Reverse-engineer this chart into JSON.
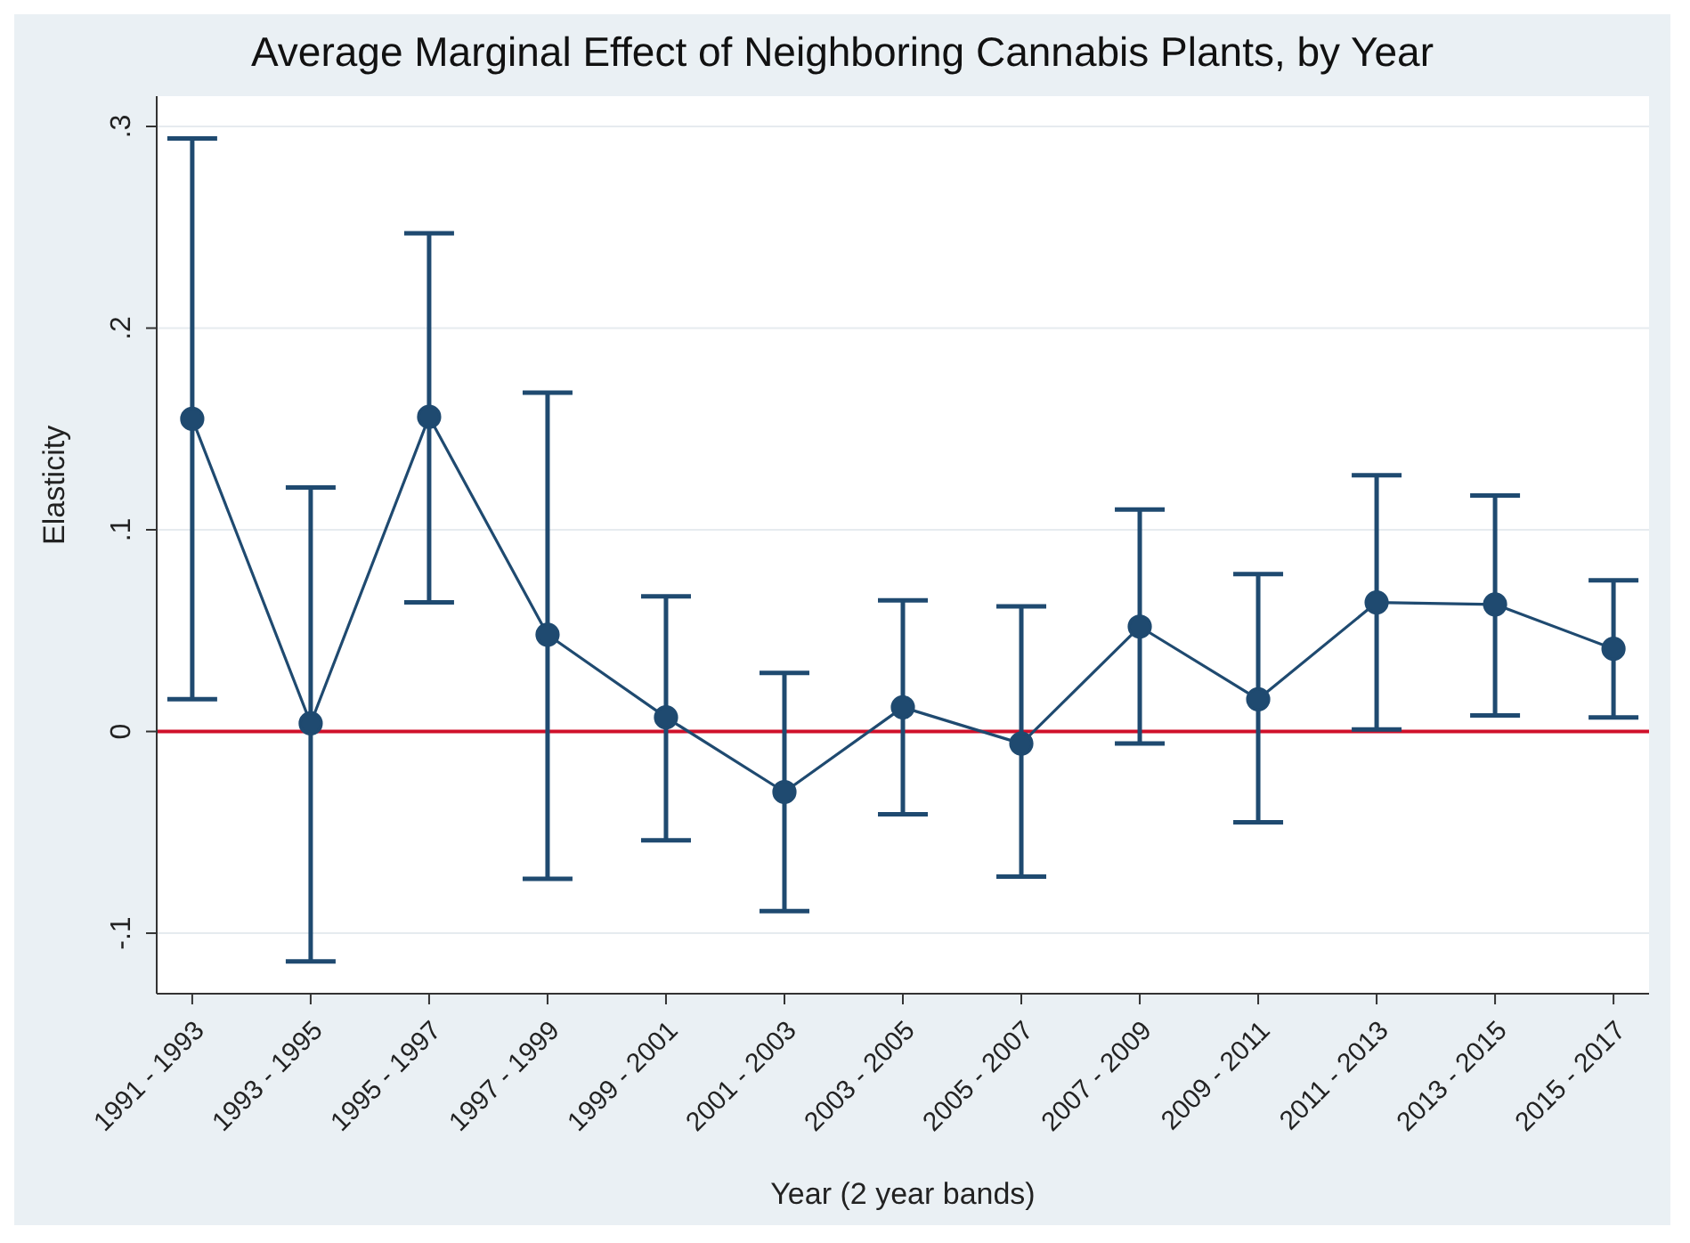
{
  "chart_data": {
    "type": "line",
    "title": "Average Marginal Effect of Neighboring Cannabis Plants, by Year",
    "xlabel": "Year (2 year bands)",
    "ylabel": "Elasticity",
    "categories": [
      "1991 - 1993",
      "1993 - 1995",
      "1995 - 1997",
      "1997 - 1999",
      "1999 - 2001",
      "2001 - 2003",
      "2003 - 2005",
      "2005 - 2007",
      "2007 - 2009",
      "2009 - 2011",
      "2011 - 2013",
      "2013 - 2015",
      "2015 - 2017"
    ],
    "series": [
      {
        "color": "#1f4a70",
        "values": [
          0.155,
          0.004,
          0.156,
          0.048,
          0.007,
          -0.03,
          0.012,
          -0.006,
          0.052,
          0.016,
          0.064,
          0.063,
          0.041
        ],
        "errors": [
          [
            0.016,
            0.294
          ],
          [
            -0.114,
            0.121
          ],
          [
            0.064,
            0.247
          ],
          [
            -0.073,
            0.168
          ],
          [
            -0.054,
            0.067
          ],
          [
            -0.089,
            0.029
          ],
          [
            -0.041,
            0.065
          ],
          [
            -0.072,
            0.062
          ],
          [
            -0.006,
            0.11
          ],
          [
            -0.045,
            0.078
          ],
          [
            0.001,
            0.127
          ],
          [
            0.008,
            0.117
          ],
          [
            0.007,
            0.075
          ]
        ]
      }
    ],
    "ylim": [
      -0.13,
      0.315
    ],
    "yticks": [
      {
        "value": -0.1,
        "label": "-.1"
      },
      {
        "value": 0,
        "label": "0"
      },
      {
        "value": 0.1,
        "label": ".1"
      },
      {
        "value": 0.2,
        "label": ".2"
      },
      {
        "value": 0.3,
        "label": ".3"
      }
    ],
    "ref_lines": [
      {
        "axis": "y",
        "value": 0,
        "color": "#d0102a"
      }
    ],
    "grid": "y",
    "marker": "circle",
    "line_style": "solid",
    "legend": false
  }
}
